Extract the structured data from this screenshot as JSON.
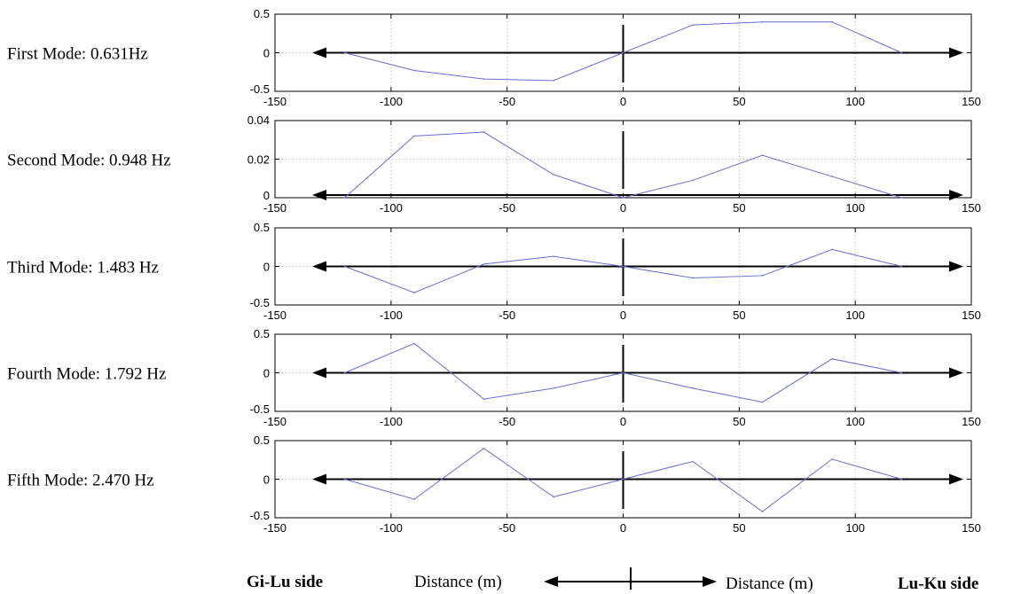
{
  "chart_data": [
    {
      "type": "line",
      "label": "First Mode: 0.631Hz",
      "x": [
        -120,
        -90,
        -60,
        -30,
        0,
        30,
        60,
        90,
        120
      ],
      "values": [
        0,
        -0.23,
        -0.34,
        -0.36,
        0,
        0.36,
        0.4,
        0.4,
        0
      ],
      "xlim": [
        -150,
        150
      ],
      "ylim": [
        -0.5,
        0.5
      ],
      "yticks": [
        "0.5",
        "0",
        "-0.5"
      ],
      "xticks": [
        "-150",
        "-100",
        "-50",
        "0",
        "50",
        "100",
        "150"
      ],
      "grid": true
    },
    {
      "type": "line",
      "label": "Second Mode: 0.948 Hz",
      "x": [
        -120,
        -90,
        -60,
        -30,
        0,
        30,
        60,
        90,
        120
      ],
      "values": [
        0,
        0.032,
        0.034,
        0.012,
        0,
        0.009,
        0.022,
        0.011,
        0
      ],
      "xlim": [
        -150,
        150
      ],
      "ylim": [
        0,
        0.04
      ],
      "yticks": [
        "0.04",
        "0.02",
        "0"
      ],
      "xticks": [
        "-150",
        "-100",
        "-50",
        "0",
        "50",
        "100",
        "150"
      ],
      "grid": true
    },
    {
      "type": "line",
      "label": "Third Mode:    1.483 Hz",
      "x": [
        -120,
        -90,
        -60,
        -30,
        0,
        30,
        60,
        90,
        120
      ],
      "values": [
        0,
        -0.34,
        0.03,
        0.13,
        0,
        -0.15,
        -0.12,
        0.22,
        0
      ],
      "xlim": [
        -150,
        150
      ],
      "ylim": [
        -0.5,
        0.5
      ],
      "yticks": [
        "0.5",
        "0",
        "-0.5"
      ],
      "xticks": [
        "-150",
        "-100",
        "-50",
        "0",
        "50",
        "100",
        "150"
      ],
      "grid": true
    },
    {
      "type": "line",
      "label": "Fourth Mode: 1.792 Hz",
      "x": [
        -120,
        -90,
        -60,
        -30,
        0,
        30,
        60,
        90,
        120
      ],
      "values": [
        0,
        0.38,
        -0.34,
        -0.2,
        0,
        -0.2,
        -0.38,
        0.18,
        0
      ],
      "xlim": [
        -150,
        150
      ],
      "ylim": [
        -0.5,
        0.5
      ],
      "yticks": [
        "0.5",
        "0",
        "-0.5"
      ],
      "xticks": [
        "-150",
        "-100",
        "-50",
        "0",
        "50",
        "100",
        "150"
      ],
      "grid": true
    },
    {
      "type": "line",
      "label": "Fifth Mode:    2.470 Hz",
      "x": [
        -120,
        -90,
        -60,
        -30,
        0,
        30,
        60,
        90,
        120
      ],
      "values": [
        0,
        -0.26,
        0.4,
        -0.23,
        0,
        0.23,
        -0.42,
        0.26,
        0
      ],
      "xlim": [
        -150,
        150
      ],
      "ylim": [
        -0.5,
        0.5
      ],
      "yticks": [
        "0.5",
        "0",
        "-0.5"
      ],
      "xticks": [
        "-150",
        "-100",
        "-50",
        "0",
        "50",
        "100",
        "150"
      ],
      "grid": true
    }
  ],
  "footer": {
    "left_side": "Gi-Lu side",
    "left_distance": "Distance (m)",
    "right_distance": "Distance (m)",
    "right_side": "Lu-Ku side"
  },
  "colors": {
    "series": "#6b6bd6",
    "axis": "#000000",
    "grid": "#b0b0b0"
  }
}
